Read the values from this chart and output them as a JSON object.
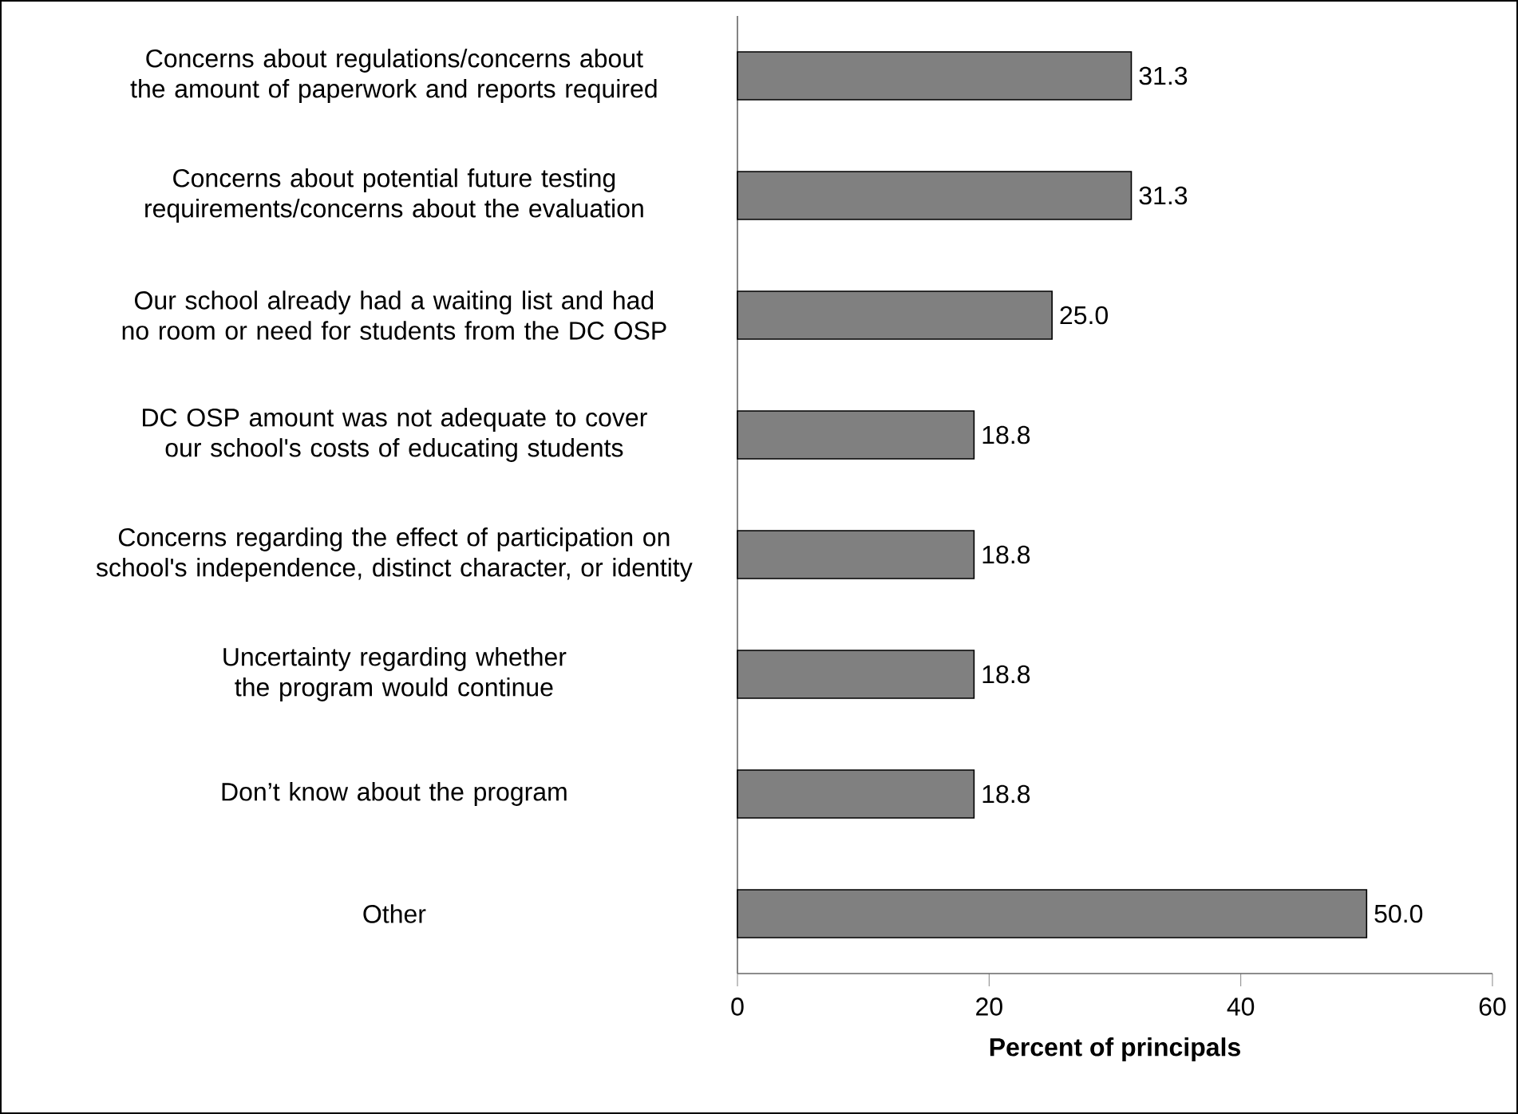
{
  "chart_data": {
    "type": "bar",
    "orientation": "horizontal",
    "xlabel": "Percent of principals",
    "categories": [
      "Concerns about regulations/concerns about the amount of paperwork and reports required",
      "Concerns about potential future testing requirements/concerns about the evaluation",
      "Our school already had a waiting list and had no room or need for students from the DC OSP",
      "DC OSP amount was not adequate to cover our school's costs of educating students",
      "Concerns regarding the effect of participation on school's independence, distinct character, or identity",
      "Uncertainty regarding whether the program would continue",
      "Don’t know about the program",
      "Other"
    ],
    "values": [
      31.3,
      31.3,
      25.0,
      18.8,
      18.8,
      18.8,
      18.8,
      50.0
    ],
    "value_labels": [
      "31.3",
      "31.3",
      "25.0",
      "18.8",
      "18.8",
      "18.8",
      "18.8",
      "50.0"
    ],
    "color": "#808080",
    "xlim": [
      0,
      60
    ],
    "xticks": [
      0,
      20,
      40,
      60
    ]
  }
}
